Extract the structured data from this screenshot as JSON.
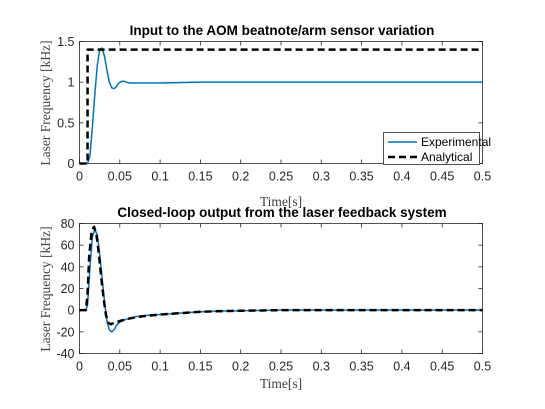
{
  "chart_data": [
    {
      "type": "line",
      "title": "Input to the AOM beatnote/arm sensor variation",
      "xlabel": "Time[s]",
      "ylabel": "Laser Frequency [kHz]",
      "xlim": [
        0,
        0.5
      ],
      "ylim": [
        0,
        1.5
      ],
      "xticks": [
        "0",
        "0.05",
        "0.1",
        "0.15",
        "0.2",
        "0.25",
        "0.3",
        "0.35",
        "0.4",
        "0.45",
        "0.5"
      ],
      "yticks": [
        "0",
        "0.5",
        "1",
        "1.5"
      ],
      "grid": "off",
      "legend_position": "bottom-right",
      "series": [
        {
          "name": "Experimental",
          "style": "solid",
          "color": "#0072BD",
          "x": [
            0,
            0.01,
            0.013,
            0.016,
            0.019,
            0.022,
            0.025,
            0.028,
            0.031,
            0.034,
            0.037,
            0.04,
            0.043,
            0.046,
            0.049,
            0.052,
            0.056,
            0.06,
            0.065,
            0.07,
            0.08,
            0.1,
            0.15,
            0.2,
            0.3,
            0.4,
            0.5
          ],
          "y": [
            0,
            0,
            0.1,
            0.45,
            0.85,
            1.2,
            1.4,
            1.42,
            1.32,
            1.15,
            1.0,
            0.93,
            0.92,
            0.95,
            0.99,
            1.01,
            1.01,
            0.995,
            0.99,
            0.99,
            0.99,
            0.99,
            1.0,
            1.0,
            1.0,
            1.0,
            1.0
          ]
        },
        {
          "name": "Analytical",
          "style": "dashed",
          "color": "#000000",
          "x": [
            0,
            0.01,
            0.01,
            0.5
          ],
          "y": [
            0,
            0,
            1.4,
            1.4
          ]
        }
      ]
    },
    {
      "type": "line",
      "title": "Closed-loop output from the laser feedback system",
      "xlabel": "Time[s]",
      "ylabel": "Laser Frequency [kHz]",
      "xlim": [
        0,
        0.5
      ],
      "ylim": [
        -40,
        80
      ],
      "xticks": [
        "0",
        "0.05",
        "0.1",
        "0.15",
        "0.2",
        "0.25",
        "0.3",
        "0.35",
        "0.4",
        "0.45",
        "0.5"
      ],
      "yticks": [
        "-40",
        "-20",
        "0",
        "20",
        "40",
        "60",
        "80"
      ],
      "grid": "off",
      "series": [
        {
          "name": "Experimental",
          "style": "solid",
          "color": "#0072BD",
          "x": [
            0,
            0.008,
            0.01,
            0.013,
            0.016,
            0.019,
            0.022,
            0.025,
            0.028,
            0.031,
            0.034,
            0.037,
            0.04,
            0.043,
            0.046,
            0.05,
            0.055,
            0.06,
            0.07,
            0.08,
            0.1,
            0.12,
            0.15,
            0.18,
            0.2,
            0.25,
            0.3,
            0.4,
            0.5
          ],
          "y": [
            0,
            0,
            5,
            40,
            68,
            74,
            70,
            52,
            30,
            8,
            -10,
            -18,
            -20,
            -18,
            -14,
            -11,
            -9,
            -8,
            -6,
            -5,
            -4,
            -3,
            -1.5,
            -0.8,
            -0.5,
            0,
            0,
            0,
            0
          ]
        },
        {
          "name": "Analytical",
          "style": "dashed",
          "color": "#000000",
          "x": [
            0,
            0.008,
            0.01,
            0.012,
            0.015,
            0.018,
            0.021,
            0.024,
            0.027,
            0.03,
            0.033,
            0.036,
            0.039,
            0.042,
            0.046,
            0.05,
            0.055,
            0.06,
            0.07,
            0.08,
            0.1,
            0.12,
            0.15,
            0.18,
            0.2,
            0.25,
            0.3,
            0.4,
            0.5
          ],
          "y": [
            0,
            0,
            15,
            50,
            72,
            77,
            70,
            52,
            30,
            10,
            -5,
            -12,
            -13,
            -12,
            -11,
            -10,
            -9,
            -8,
            -6.5,
            -5.5,
            -4,
            -3,
            -1.5,
            -0.8,
            -0.5,
            0,
            0,
            0,
            0
          ]
        }
      ]
    }
  ]
}
